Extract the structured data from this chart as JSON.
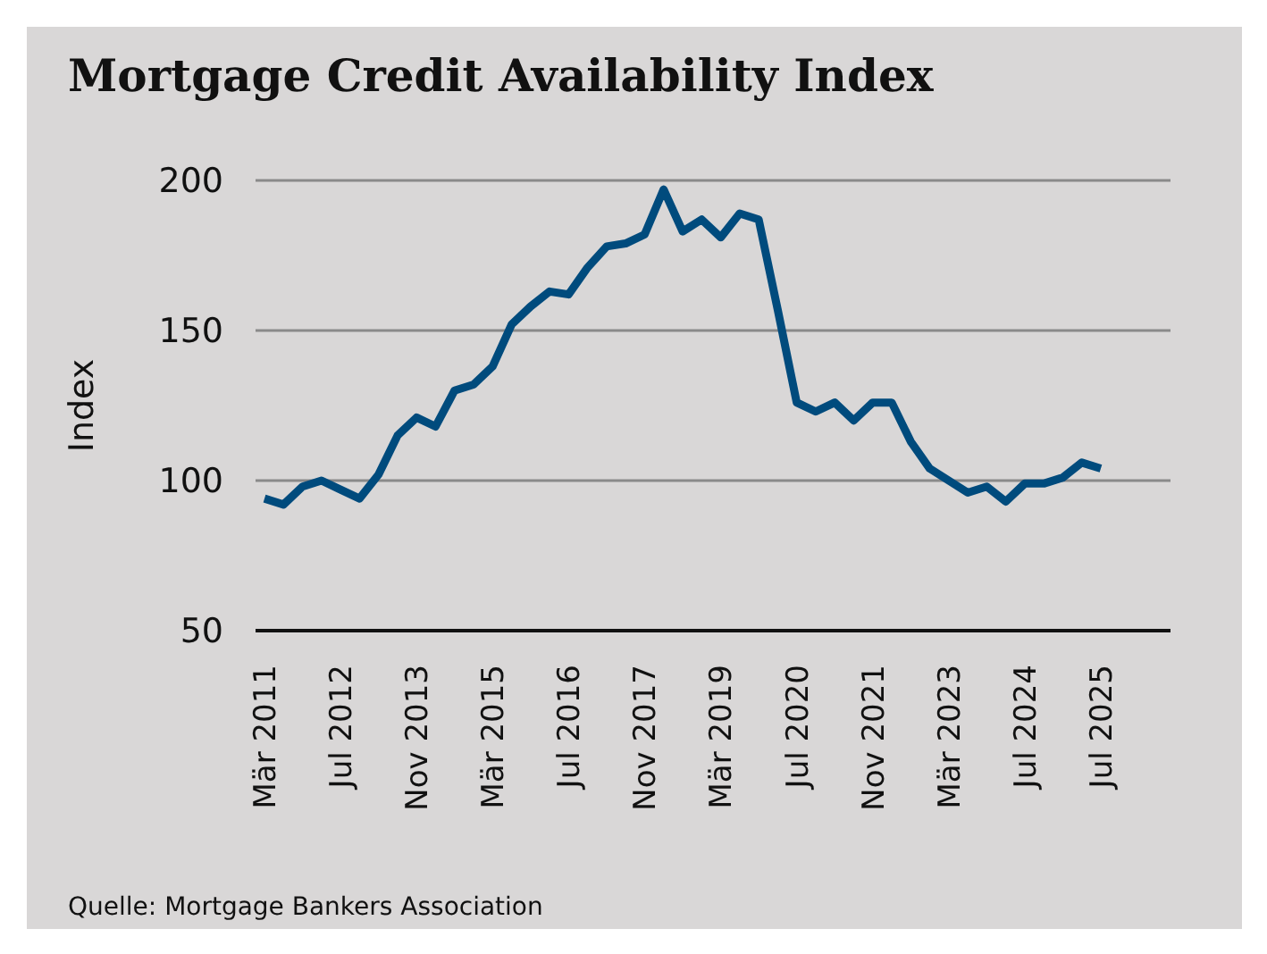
{
  "chart_data": {
    "type": "line",
    "title": "Mortgage Credit Availability Index",
    "ylabel": "Index",
    "annotations": [
      "Quelle: Mortgage Bankers Association"
    ],
    "categories": [
      "Mär 2011",
      null,
      null,
      null,
      "Jul 2012",
      null,
      null,
      null,
      "Nov 2013",
      null,
      null,
      null,
      "Mär 2015",
      null,
      null,
      null,
      "Jul 2016",
      null,
      null,
      null,
      "Nov 2017",
      null,
      null,
      null,
      "Mär 2019",
      null,
      null,
      null,
      "Jul 2020",
      null,
      null,
      null,
      "Nov 2021",
      null,
      null,
      null,
      "Mär 2023",
      null,
      null,
      null,
      "Jul 2024",
      null,
      null,
      null,
      "Jul 2025"
    ],
    "series": [
      {
        "color": "#004b7d",
        "values": [
          94,
          92,
          98,
          100,
          97,
          94,
          102,
          115,
          121,
          118,
          130,
          132,
          138,
          152,
          158,
          163,
          162,
          171,
          178,
          179,
          182,
          197,
          183,
          187,
          181,
          189,
          187,
          157,
          126,
          123,
          126,
          120,
          126,
          126,
          113,
          104,
          100,
          96,
          98,
          93,
          99,
          99,
          101,
          106,
          104
        ]
      }
    ],
    "ylim": [
      50,
      200
    ],
    "yticks": [
      50,
      100,
      150,
      200
    ],
    "grid": "y",
    "marker": "none",
    "line_style": "solid"
  }
}
